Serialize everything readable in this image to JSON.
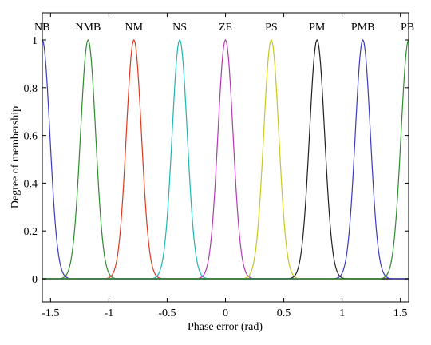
{
  "chart_data": {
    "type": "line",
    "title": "",
    "xlabel": "Phase error (rad)",
    "ylabel": "Degree of membership",
    "xlim": [
      -1.5708,
      1.5708
    ],
    "ylim": [
      -0.1,
      1.0
    ],
    "grid": false,
    "legend": "none",
    "x_ticks": [
      -1.5,
      -1,
      -0.5,
      0,
      0.5,
      1,
      1.5
    ],
    "x_tick_labels": [
      "-1.5",
      "-1",
      "-0.5",
      "0",
      "0.5",
      "1",
      "1.5"
    ],
    "y_ticks": [
      0,
      0.2,
      0.4,
      0.6,
      0.8,
      1
    ],
    "y_tick_labels": [
      "0",
      "0.2",
      "0.4",
      "0.6",
      "0.8",
      "1"
    ],
    "membership_shape": "gaussian",
    "sigma": 0.065,
    "series": [
      {
        "name": "NB",
        "center": -1.5708,
        "color": "#3b3bbf"
      },
      {
        "name": "NMB",
        "center": -1.1781,
        "color": "#2e8b2e"
      },
      {
        "name": "NM",
        "center": -0.7854,
        "color": "#e03a1e"
      },
      {
        "name": "NS",
        "center": -0.3927,
        "color": "#1fb5b5"
      },
      {
        "name": "ZE",
        "center": 0.0,
        "color": "#b23ab2"
      },
      {
        "name": "PS",
        "center": 0.3927,
        "color": "#c8c820"
      },
      {
        "name": "PM",
        "center": 0.7854,
        "color": "#202020"
      },
      {
        "name": "PMB",
        "center": 1.1781,
        "color": "#3b3bbf"
      },
      {
        "name": "PB",
        "center": 1.5708,
        "color": "#2e8b2e"
      }
    ]
  }
}
